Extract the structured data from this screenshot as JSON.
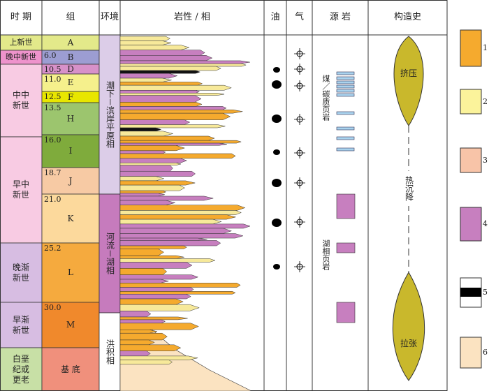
{
  "header": [
    "时 期",
    "组",
    "环境",
    "岩性 / 相",
    "油",
    "气",
    "源 岩",
    "构造史"
  ],
  "periods": [
    {
      "label": "上新世"
    },
    {
      "label": "晚中新世"
    },
    {
      "label": "中中新世"
    },
    {
      "label": "早中新世"
    },
    {
      "label": "晚渐新世"
    },
    {
      "label": "早渐新世"
    },
    {
      "label": "白垩纪或更老"
    }
  ],
  "formations": [
    {
      "label": "A"
    },
    {
      "label": "B",
      "age": "6.0"
    },
    {
      "label": "D",
      "age": "10.5"
    },
    {
      "label": "E",
      "age": "11.0"
    },
    {
      "label": "F",
      "age": "12.5"
    },
    {
      "label": "H",
      "age": "13.5"
    },
    {
      "label": "I",
      "age": "16.0"
    },
    {
      "label": "J",
      "age": "18.7"
    },
    {
      "label": "K",
      "age": "21.0"
    },
    {
      "label": "L",
      "age": "25.2"
    },
    {
      "label": "M",
      "age": "30.0"
    },
    {
      "label": "基 底"
    }
  ],
  "environments": [
    "潮下－滨岸平原相",
    "河流－湖相",
    "洪积相"
  ],
  "source_rocks": [
    "煤／碳质页岩",
    "湖相页岩"
  ],
  "tectonics": [
    "挤压",
    "热沉降",
    "拉张"
  ],
  "legend": [
    "1",
    "2",
    "3",
    "4",
    "5",
    "6"
  ]
}
